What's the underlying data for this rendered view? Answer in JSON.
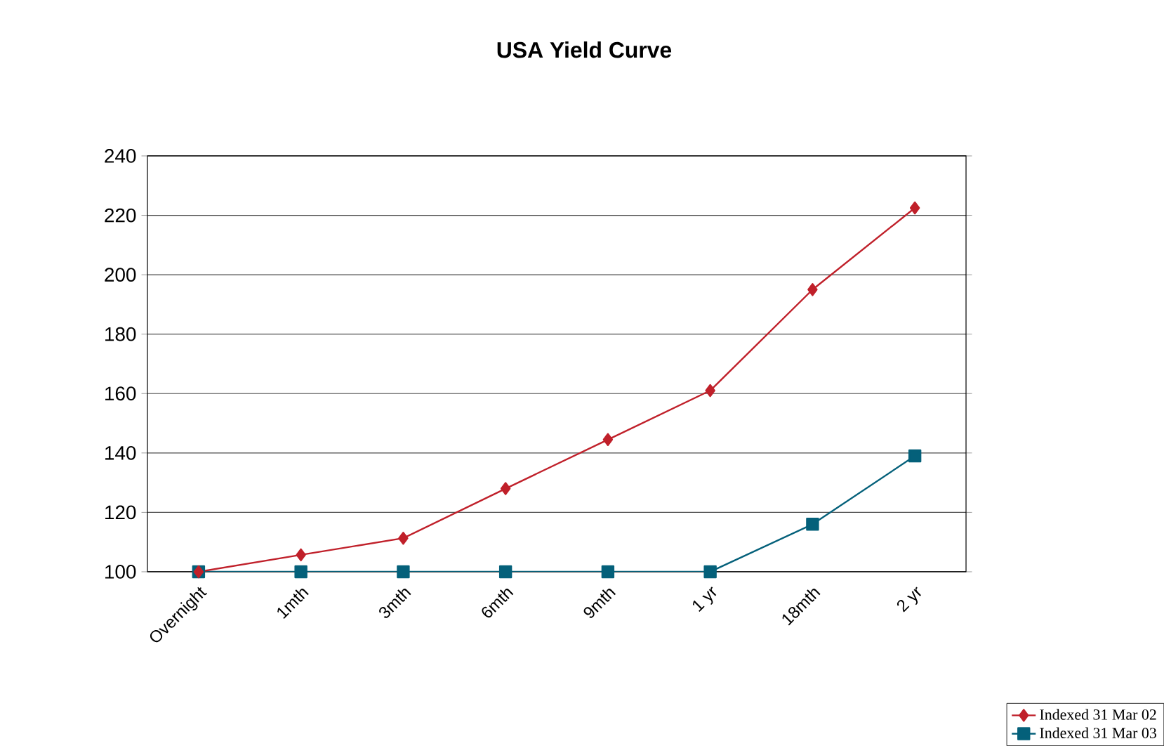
{
  "chart_data": {
    "type": "line",
    "title": "USA Yield Curve",
    "categories": [
      "Overnight",
      "1mth",
      "3mth",
      "6mth",
      "9mth",
      "1 yr",
      "18mth",
      "2 yr"
    ],
    "series": [
      {
        "name": "Indexed 31 Mar 02",
        "color": "#c0202a",
        "marker": "diamond",
        "values": [
          100,
          105.7,
          111.3,
          128,
          144.5,
          161,
          195,
          222.5
        ]
      },
      {
        "name": "Indexed 31 Mar 03",
        "color": "#04607a",
        "marker": "square",
        "values": [
          100,
          100,
          100,
          100,
          100,
          100,
          116,
          139
        ]
      }
    ],
    "ylim": [
      100,
      240
    ],
    "yticks": [
      100,
      120,
      140,
      160,
      180,
      200,
      220,
      240
    ],
    "grid": "y",
    "legend": "bottom right",
    "line_style": "solid"
  }
}
